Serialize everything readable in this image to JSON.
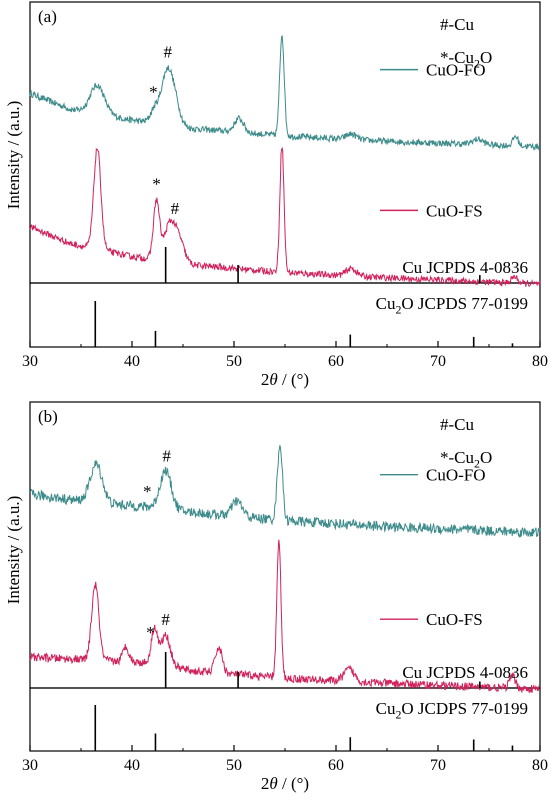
{
  "chart_data": [
    {
      "type": "line",
      "panel_label": "(a)",
      "xlabel": "2θ / (°)",
      "ylabel": "Intensity / (a.u.)",
      "xlim": [
        30,
        80
      ],
      "x_ticks": [
        30,
        40,
        50,
        60,
        70,
        80
      ],
      "marker_legend": [
        "#-Cu",
        "*-Cu2O"
      ],
      "series": [
        {
          "name": "CuO-FO",
          "color": "#3e8b8b",
          "baseline": 0.15,
          "noise": 0.03,
          "background": [
            [
              30,
              0.55
            ],
            [
              34,
              0.4
            ],
            [
              40,
              0.3
            ],
            [
              46,
              0.22
            ],
            [
              55,
              0.15
            ],
            [
              65,
              0.1
            ],
            [
              80,
              0.05
            ]
          ],
          "peaks": [
            [
              36.6,
              0.27,
              0.7
            ],
            [
              42.2,
              0.12,
              0.4
            ],
            [
              43.4,
              0.47,
              0.55
            ],
            [
              44.2,
              0.2,
              0.5
            ],
            [
              50.5,
              0.13,
              0.45
            ],
            [
              54.7,
              0.95,
              0.22
            ],
            [
              61.5,
              0.05,
              0.5
            ],
            [
              73.9,
              0.05,
              0.5
            ],
            [
              77.6,
              0.09,
              0.25
            ]
          ],
          "annotations": [
            {
              "x": 43.5,
              "text": "#"
            },
            {
              "x": 42.1,
              "text": "*"
            }
          ]
        },
        {
          "name": "CuO-FS",
          "color": "#d0235b",
          "baseline": 0.12,
          "noise": 0.03,
          "background": [
            [
              30,
              0.58
            ],
            [
              34,
              0.42
            ],
            [
              40,
              0.3
            ],
            [
              46,
              0.22
            ],
            [
              55,
              0.15
            ],
            [
              65,
              0.1
            ],
            [
              80,
              0.04
            ]
          ],
          "peaks": [
            [
              36.6,
              0.95,
              0.35
            ],
            [
              42.4,
              0.55,
              0.3
            ],
            [
              43.6,
              0.3,
              0.5
            ],
            [
              44.5,
              0.25,
              0.55
            ],
            [
              54.7,
              1.2,
              0.2
            ],
            [
              61.5,
              0.07,
              0.5
            ],
            [
              77.5,
              0.06,
              0.3
            ]
          ],
          "annotations": [
            {
              "x": 44.2,
              "text": "#"
            },
            {
              "x": 42.4,
              "text": "*"
            }
          ]
        }
      ],
      "references": [
        {
          "label": "Cu JCPDS 4-0836",
          "sticks": [
            [
              43.3,
              1.0
            ],
            [
              50.4,
              0.5
            ],
            [
              74.1,
              0.22
            ]
          ]
        },
        {
          "label": "Cu2O JCPDS 77-0199",
          "sticks": [
            [
              36.4,
              1.0
            ],
            [
              42.3,
              0.35
            ],
            [
              61.4,
              0.27
            ],
            [
              73.5,
              0.22
            ],
            [
              77.3,
              0.08
            ]
          ]
        }
      ]
    },
    {
      "type": "line",
      "panel_label": "(b)",
      "xlabel": "2θ / (°)",
      "ylabel": "Intensity / (a.u.)",
      "xlim": [
        30,
        80
      ],
      "x_ticks": [
        30,
        40,
        50,
        60,
        70,
        80
      ],
      "marker_legend": [
        "#-Cu",
        "*-Cu2O"
      ],
      "series": [
        {
          "name": "CuO-FO",
          "color": "#3e8b8b",
          "baseline": 0.22,
          "noise": 0.05,
          "background": [
            [
              30,
              0.58
            ],
            [
              36,
              0.5
            ],
            [
              42,
              0.45
            ],
            [
              46,
              0.4
            ],
            [
              55,
              0.32
            ],
            [
              65,
              0.26
            ],
            [
              80,
              0.2
            ]
          ],
          "peaks": [
            [
              36.5,
              0.38,
              0.6
            ],
            [
              43.3,
              0.38,
              0.55
            ],
            [
              50.3,
              0.15,
              0.5
            ],
            [
              54.5,
              0.75,
              0.25
            ]
          ],
          "annotations": [
            {
              "x": 43.4,
              "text": "#"
            },
            {
              "x": 41.5,
              "text": "*"
            }
          ]
        },
        {
          "name": "CuO-FS",
          "color": "#d0235b",
          "baseline": 0.1,
          "noise": 0.04,
          "background": [
            [
              30,
              0.36
            ],
            [
              36,
              0.33
            ],
            [
              42,
              0.3
            ],
            [
              46,
              0.22
            ],
            [
              55,
              0.15
            ],
            [
              65,
              0.1
            ],
            [
              80,
              0.04
            ]
          ],
          "peaks": [
            [
              36.4,
              0.75,
              0.35
            ],
            [
              39.4,
              0.15,
              0.3
            ],
            [
              42.2,
              0.35,
              0.3
            ],
            [
              43.3,
              0.3,
              0.45
            ],
            [
              48.5,
              0.25,
              0.35
            ],
            [
              54.4,
              1.35,
              0.2
            ],
            [
              61.3,
              0.12,
              0.5
            ],
            [
              77.3,
              0.12,
              0.3
            ]
          ],
          "annotations": [
            {
              "x": 43.3,
              "text": "#"
            },
            {
              "x": 41.8,
              "text": "*"
            }
          ]
        }
      ],
      "references": [
        {
          "label": "Cu JCPDS 4-0836",
          "sticks": [
            [
              43.3,
              1.0
            ],
            [
              50.4,
              0.45
            ],
            [
              74.1,
              0.18
            ]
          ]
        },
        {
          "label": "Cu2O JCDPS 77-0199",
          "sticks": [
            [
              36.4,
              1.0
            ],
            [
              42.3,
              0.38
            ],
            [
              61.4,
              0.3
            ],
            [
              73.5,
              0.25
            ],
            [
              77.3,
              0.12
            ]
          ]
        }
      ]
    }
  ]
}
